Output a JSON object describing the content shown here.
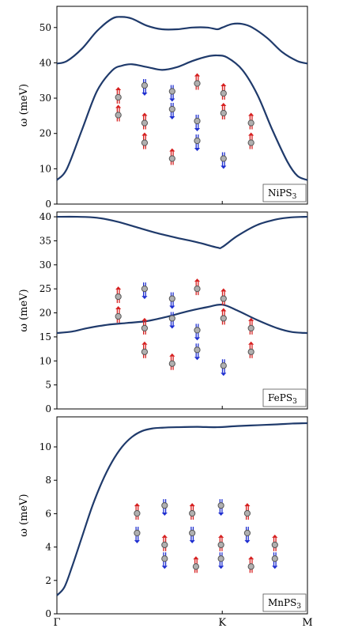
{
  "chart_data": [
    {
      "type": "line",
      "ylabel": "ω (meV)",
      "ylim": [
        0,
        56
      ],
      "yticks": [
        0,
        10,
        20,
        30,
        40,
        50
      ],
      "legend_text": "NiPS",
      "legend_sub": "3",
      "legend_placement": "bottom-right",
      "series": [
        {
          "x": [
            0,
            0.04,
            0.1,
            0.16,
            0.22,
            0.26,
            0.3,
            0.36,
            0.42,
            0.48,
            0.54,
            0.6,
            0.64,
            0.66,
            0.7,
            0.74,
            0.78,
            0.84,
            0.9,
            0.96,
            1.0
          ],
          "y": [
            39.8,
            40.5,
            44,
            49,
            52.5,
            53,
            52.5,
            50.5,
            49.5,
            49.5,
            50,
            50,
            49.5,
            50,
            51,
            51,
            50,
            47,
            43,
            40.5,
            39.8
          ]
        },
        {
          "x": [
            0,
            0.04,
            0.1,
            0.16,
            0.22,
            0.26,
            0.3,
            0.36,
            0.42,
            0.48,
            0.54,
            0.6,
            0.64,
            0.68,
            0.74,
            0.8,
            0.86,
            0.92,
            0.96,
            1.0
          ],
          "y": [
            6.8,
            10,
            21,
            32,
            37.8,
            39.2,
            39.6,
            38.8,
            38,
            38.8,
            40.5,
            41.8,
            42.1,
            41.5,
            38,
            31,
            21,
            12,
            8,
            6.8
          ]
        }
      ]
    },
    {
      "type": "line",
      "ylabel": "ω (meV)",
      "ylim": [
        0,
        41
      ],
      "yticks": [
        0,
        5,
        10,
        15,
        20,
        25,
        30,
        35,
        40
      ],
      "legend_text": "FePS",
      "legend_sub": "3",
      "legend_placement": "bottom-right",
      "series": [
        {
          "x": [
            0,
            0.08,
            0.16,
            0.24,
            0.32,
            0.4,
            0.48,
            0.56,
            0.64,
            0.66,
            0.72,
            0.8,
            0.88,
            0.94,
            1.0
          ],
          "y": [
            40,
            40,
            39.8,
            39,
            37.8,
            36.6,
            35.6,
            34.7,
            33.6,
            33.7,
            36,
            38.3,
            39.5,
            39.9,
            40
          ]
        },
        {
          "x": [
            0,
            0.06,
            0.12,
            0.2,
            0.28,
            0.36,
            0.44,
            0.52,
            0.6,
            0.66,
            0.72,
            0.8,
            0.88,
            0.94,
            1.0
          ],
          "y": [
            15.8,
            16.1,
            16.8,
            17.5,
            17.9,
            18.3,
            19.2,
            20.3,
            21.2,
            21.7,
            20.5,
            18.5,
            16.8,
            16,
            15.8
          ]
        }
      ]
    },
    {
      "type": "line",
      "ylabel": "ω (meV)",
      "ylim": [
        0,
        11.8
      ],
      "yticks": [
        0,
        2,
        4,
        6,
        8,
        10
      ],
      "xticks": [
        "Γ",
        "K",
        "M"
      ],
      "xtick_pos": [
        0,
        0.66,
        1
      ],
      "legend_text": "MnPS",
      "legend_sub": "3",
      "legend_placement": "bottom-right",
      "series": [
        {
          "x": [
            0,
            0.03,
            0.06,
            0.1,
            0.14,
            0.18,
            0.22,
            0.26,
            0.3,
            0.34,
            0.38,
            0.42,
            0.48,
            0.56,
            0.64,
            0.72,
            0.8,
            0.88,
            0.94,
            1.0
          ],
          "y": [
            1.1,
            1.6,
            2.8,
            4.6,
            6.4,
            7.9,
            9.1,
            10.0,
            10.6,
            10.95,
            11.1,
            11.15,
            11.18,
            11.2,
            11.18,
            11.25,
            11.3,
            11.35,
            11.4,
            11.42
          ]
        }
      ]
    }
  ],
  "colors": {
    "curve": "#1f3a6b",
    "spin_up": "#d62020",
    "spin_down": "#1f2fd0",
    "atom": "#8a8a8a"
  }
}
